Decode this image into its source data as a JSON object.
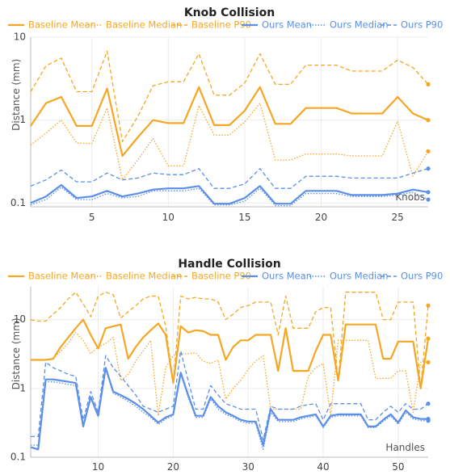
{
  "chart_data": [
    {
      "type": "line",
      "title": "Knob Collision",
      "xlabel": "Knobs",
      "ylabel": "Distance (mm)",
      "yscale": "log",
      "ylim": [
        0.09,
        10
      ],
      "xlim": [
        1,
        27
      ],
      "xticks": [
        5,
        10,
        15,
        20,
        25
      ],
      "yticks": [
        {
          "value": 0.1,
          "label": "0.1"
        },
        {
          "value": 1,
          "label": "1"
        },
        {
          "value": 10,
          "label": "10"
        }
      ],
      "grid": true,
      "legend": "top",
      "x": [
        1,
        2,
        3,
        4,
        5,
        6,
        7,
        8,
        9,
        10,
        11,
        12,
        13,
        14,
        15,
        16,
        17,
        18,
        19,
        20,
        21,
        22,
        23,
        24,
        25,
        26,
        27
      ],
      "series": [
        {
          "name": "Baseline Mean",
          "color": "#F5A623",
          "dash": "solid",
          "values": [
            0.85,
            1.6,
            1.9,
            0.85,
            0.85,
            2.4,
            0.37,
            0.62,
            1.0,
            0.92,
            0.92,
            2.5,
            0.87,
            0.87,
            1.3,
            2.5,
            0.9,
            0.9,
            1.4,
            1.4,
            1.4,
            1.2,
            1.2,
            1.2,
            1.9,
            1.2,
            1.0
          ]
        },
        {
          "name": "Baseline Median",
          "color": "#F5A623",
          "dash": "dotted",
          "values": [
            0.5,
            0.7,
            1.0,
            0.53,
            0.52,
            1.4,
            0.19,
            0.33,
            0.6,
            0.28,
            0.28,
            1.5,
            0.66,
            0.66,
            0.95,
            1.6,
            0.33,
            0.33,
            0.39,
            0.39,
            0.39,
            0.37,
            0.37,
            0.37,
            0.97,
            0.21,
            0.42
          ]
        },
        {
          "name": "Baseline P90",
          "color": "#F5A623",
          "dash": "dashed",
          "values": [
            2.2,
            4.5,
            5.6,
            2.2,
            2.2,
            6.8,
            0.55,
            1.1,
            2.6,
            2.9,
            2.9,
            6.3,
            2.0,
            2.0,
            2.8,
            6.3,
            2.7,
            2.7,
            4.6,
            4.6,
            4.6,
            3.9,
            3.9,
            3.9,
            5.3,
            4.3,
            2.7
          ]
        },
        {
          "name": "Ours Mean",
          "color": "#5B8FE8",
          "dash": "solid",
          "values": [
            0.1,
            0.12,
            0.165,
            0.115,
            0.12,
            0.14,
            0.12,
            0.13,
            0.145,
            0.15,
            0.15,
            0.16,
            0.098,
            0.098,
            0.115,
            0.16,
            0.098,
            0.098,
            0.14,
            0.14,
            0.14,
            0.125,
            0.125,
            0.125,
            0.13,
            0.145,
            0.135
          ]
        },
        {
          "name": "Ours Median",
          "color": "#5B8FE8",
          "dash": "dotted",
          "values": [
            0.095,
            0.11,
            0.155,
            0.11,
            0.11,
            0.13,
            0.115,
            0.12,
            0.14,
            0.14,
            0.14,
            0.15,
            0.095,
            0.095,
            0.105,
            0.15,
            0.093,
            0.093,
            0.13,
            0.13,
            0.13,
            0.12,
            0.12,
            0.12,
            0.125,
            0.135,
            0.11
          ]
        },
        {
          "name": "Ours P90",
          "color": "#5B8FE8",
          "dash": "dashed",
          "values": [
            0.16,
            0.19,
            0.25,
            0.18,
            0.18,
            0.23,
            0.19,
            0.2,
            0.23,
            0.22,
            0.22,
            0.26,
            0.15,
            0.15,
            0.17,
            0.26,
            0.15,
            0.15,
            0.21,
            0.21,
            0.21,
            0.2,
            0.2,
            0.2,
            0.2,
            0.23,
            0.26
          ]
        }
      ]
    },
    {
      "type": "line",
      "title": "Handle Collision",
      "xlabel": "Handles",
      "ylabel": "Distance (mm)",
      "yscale": "log",
      "ylim": [
        0.1,
        30
      ],
      "xlim": [
        1,
        54
      ],
      "xticks": [
        10,
        20,
        30,
        40,
        50
      ],
      "yticks": [
        {
          "value": 0.1,
          "label": "0.1"
        },
        {
          "value": 1,
          "label": "1"
        },
        {
          "value": 10,
          "label": "10"
        }
      ],
      "grid": true,
      "legend": "top",
      "x": [
        1,
        2,
        3,
        4,
        5,
        6,
        7,
        8,
        9,
        10,
        11,
        12,
        13,
        14,
        15,
        16,
        17,
        18,
        19,
        20,
        21,
        22,
        23,
        24,
        25,
        26,
        27,
        28,
        29,
        30,
        31,
        32,
        33,
        34,
        35,
        36,
        37,
        38,
        39,
        40,
        41,
        42,
        43,
        44,
        45,
        46,
        47,
        48,
        49,
        50,
        51,
        52,
        53,
        54
      ],
      "series": [
        {
          "name": "Baseline Mean",
          "color": "#F5A623",
          "dash": "solid",
          "values": [
            2.6,
            2.6,
            2.6,
            2.7,
            4.0,
            5.5,
            7.5,
            10.0,
            6.0,
            3.8,
            7.5,
            8.0,
            8.5,
            2.7,
            4.0,
            5.5,
            7.0,
            8.8,
            6.0,
            1.2,
            8.0,
            6.5,
            7.0,
            6.8,
            6.0,
            6.0,
            2.6,
            4.0,
            5.0,
            5.0,
            6.0,
            6.0,
            6.0,
            1.8,
            7.5,
            1.8,
            1.8,
            1.8,
            3.5,
            6.0,
            6.0,
            1.3,
            8.5,
            8.5,
            8.5,
            8.5,
            8.5,
            2.7,
            2.7,
            4.8,
            4.8,
            4.8,
            1.0,
            5.3
          ]
        },
        {
          "name": "Baseline Median",
          "color": "#F5A623",
          "dash": "dotted",
          "values": [
            2.6,
            2.6,
            2.6,
            2.7,
            3.5,
            4.5,
            6.5,
            5.0,
            3.2,
            4.0,
            4.5,
            5.5,
            1.3,
            1.6,
            2.5,
            3.5,
            5.0,
            0.4,
            2.0,
            3.0,
            3.2,
            3.2,
            3.3,
            2.5,
            2.3,
            2.6,
            0.7,
            1.0,
            1.3,
            1.9,
            2.5,
            3.0,
            0.5,
            0.5,
            0.5,
            0.5,
            0.5,
            1.5,
            2.0,
            2.3,
            0.4,
            5.0,
            5.0,
            5.0,
            5.0,
            5.0,
            1.4,
            1.4,
            1.4,
            1.8,
            1.8,
            0.45,
            2.4,
            2.4
          ]
        },
        {
          "name": "Baseline P90",
          "color": "#F5A623",
          "dash": "dashed",
          "values": [
            10.0,
            9.5,
            9.5,
            12.0,
            15.0,
            20.0,
            25.0,
            17.0,
            11.0,
            22.0,
            25.0,
            23.0,
            10.5,
            13.0,
            16.0,
            20.0,
            22.0,
            22.0,
            8.0,
            1.2,
            22.0,
            20.0,
            21.0,
            20.0,
            20.0,
            18.0,
            10.0,
            12.0,
            15.0,
            16.0,
            18.0,
            18.0,
            18.0,
            6.0,
            22.0,
            7.5,
            7.5,
            7.5,
            13.0,
            15.0,
            15.0,
            1.3,
            25.0,
            25.0,
            25.0,
            25.0,
            25.0,
            10.0,
            10.0,
            18.0,
            18.0,
            18.0,
            1.0,
            16.0
          ]
        },
        {
          "name": "Ours Mean",
          "color": "#5B8FE8",
          "dash": "solid",
          "values": [
            0.14,
            0.13,
            1.35,
            1.35,
            1.3,
            1.25,
            1.2,
            0.28,
            0.75,
            0.4,
            2.0,
            0.9,
            0.8,
            0.7,
            0.6,
            0.5,
            0.4,
            0.32,
            0.38,
            0.42,
            1.7,
            0.8,
            0.4,
            0.4,
            0.75,
            0.55,
            0.45,
            0.4,
            0.35,
            0.33,
            0.33,
            0.15,
            0.5,
            0.35,
            0.35,
            0.35,
            0.38,
            0.4,
            0.42,
            0.28,
            0.4,
            0.42,
            0.42,
            0.42,
            0.42,
            0.28,
            0.28,
            0.35,
            0.42,
            0.32,
            0.48,
            0.38,
            0.36,
            0.36
          ]
        },
        {
          "name": "Ours Median",
          "color": "#5B8FE8",
          "dash": "dotted",
          "values": [
            0.15,
            0.15,
            1.25,
            1.25,
            1.2,
            1.15,
            1.1,
            0.3,
            0.7,
            0.4,
            1.9,
            0.85,
            0.75,
            0.65,
            0.55,
            0.45,
            0.38,
            0.3,
            0.36,
            0.4,
            1.6,
            0.75,
            0.38,
            0.38,
            0.7,
            0.5,
            0.42,
            0.38,
            0.33,
            0.31,
            0.31,
            0.13,
            0.45,
            0.33,
            0.33,
            0.33,
            0.36,
            0.38,
            0.4,
            0.27,
            0.38,
            0.4,
            0.4,
            0.4,
            0.4,
            0.27,
            0.27,
            0.33,
            0.4,
            0.3,
            0.45,
            0.36,
            0.34,
            0.34
          ]
        },
        {
          "name": "Ours P90",
          "color": "#5B8FE8",
          "dash": "dashed",
          "values": [
            0.2,
            0.2,
            2.4,
            2.0,
            1.8,
            1.6,
            1.5,
            0.35,
            0.9,
            0.45,
            3.0,
            2.0,
            1.5,
            1.1,
            0.8,
            0.55,
            0.5,
            0.45,
            0.5,
            0.55,
            3.5,
            1.3,
            0.5,
            0.5,
            1.1,
            0.8,
            0.6,
            0.55,
            0.5,
            0.5,
            0.5,
            0.18,
            0.55,
            0.5,
            0.5,
            0.5,
            0.55,
            0.58,
            0.6,
            0.35,
            0.6,
            0.6,
            0.6,
            0.6,
            0.6,
            0.35,
            0.35,
            0.45,
            0.55,
            0.45,
            0.6,
            0.5,
            0.5,
            0.6
          ]
        }
      ]
    }
  ]
}
